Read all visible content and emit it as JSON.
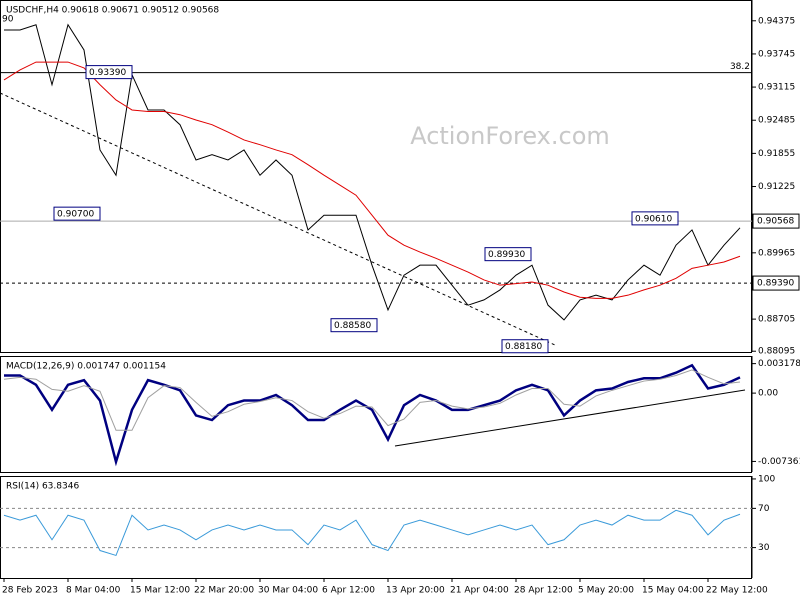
{
  "chart_data": [
    {
      "type": "line",
      "title": "USDCHF,H4  0.90618 0.90671 0.90512 0.90568",
      "watermark": "ActionForex.com",
      "cut_label": "90",
      "ylim": [
        0.8808,
        0.9477
      ],
      "yticks": [
        0.94375,
        0.93745,
        0.93115,
        0.92485,
        0.91855,
        0.91225,
        0.89965,
        0.88705,
        0.88095
      ],
      "price_line": 0.90568,
      "level_line": {
        "value": 0.8939,
        "label": "0.89390"
      },
      "fib_line": {
        "value": 0.9339,
        "label": "38.2"
      },
      "annotations": [
        {
          "value": 0.9339,
          "label": "0.93390"
        },
        {
          "value": 0.907,
          "label": "0.90700"
        },
        {
          "value": 0.8858,
          "label": "0.88580"
        },
        {
          "value": 0.8993,
          "label": "0.89930"
        },
        {
          "value": 0.8818,
          "label": "0.88180"
        },
        {
          "value": 0.9061,
          "label": "0.90610"
        }
      ],
      "series": [
        {
          "color": "#000000",
          "values": [
            0.942,
            0.942,
            0.943,
            0.9316,
            0.943,
            0.9382,
            0.9192,
            0.9144,
            0.9335,
            0.9268,
            0.9268,
            0.924,
            0.9173,
            0.9183,
            0.9173,
            0.9192,
            0.9144,
            0.9173,
            0.9144,
            0.904,
            0.9068,
            0.9068,
            0.9068,
            0.8973,
            0.8888,
            0.8954,
            0.8973,
            0.8973,
            0.8935,
            0.8897,
            0.8907,
            0.8926,
            0.8954,
            0.8973,
            0.8897,
            0.8869,
            0.8907,
            0.8916,
            0.8907,
            0.8945,
            0.8973,
            0.8954,
            0.9011,
            0.904,
            0.8973,
            0.9011,
            0.9044
          ]
        },
        {
          "color": "#e00000",
          "values": [
            0.9325,
            0.9344,
            0.9359,
            0.9359,
            0.9359,
            0.9348,
            0.9316,
            0.9287,
            0.9268,
            0.9265,
            0.9265,
            0.9259,
            0.9249,
            0.924,
            0.9226,
            0.9211,
            0.9202,
            0.9192,
            0.9183,
            0.9164,
            0.9144,
            0.9125,
            0.9106,
            0.9068,
            0.903,
            0.9011,
            0.8998,
            0.8986,
            0.8973,
            0.896,
            0.8945,
            0.8935,
            0.8938,
            0.8941,
            0.8935,
            0.8922,
            0.8912,
            0.891,
            0.891,
            0.8916,
            0.8926,
            0.8935,
            0.8948,
            0.8967,
            0.8973,
            0.8979,
            0.899
          ]
        }
      ]
    },
    {
      "type": "line",
      "title": "MACD(12,26,9) 0.001747 0.001154",
      "ylim": [
        -0.0085,
        0.004
      ],
      "yticks": [
        0.003178,
        {
          "value": 0,
          "label": "0.00"
        },
        -0.007361
      ],
      "series": [
        {
          "color": "#000080",
          "values": [
            0.0019,
            0.0019,
            0.0009,
            -0.0018,
            0.0009,
            0.0014,
            -0.0008,
            -0.0074,
            -0.0018,
            0.0014,
            0.0009,
            0.0003,
            -0.0024,
            -0.0029,
            -0.0013,
            -0.0008,
            -0.0008,
            -0.0002,
            -0.0013,
            -0.0029,
            -0.0029,
            -0.0018,
            -0.0008,
            -0.0018,
            -0.005,
            -0.0013,
            -0.0002,
            -0.0008,
            -0.0018,
            -0.0018,
            -0.0013,
            -0.0008,
            0.0003,
            0.0009,
            0.0003,
            -0.0024,
            -0.0008,
            0.0003,
            0.0005,
            0.0012,
            0.0016,
            0.0016,
            0.0022,
            0.003,
            0.0005,
            0.0009,
            0.0017
          ]
        },
        {
          "color": "#a0a0a0",
          "values": [
            0.0015,
            0.0017,
            0.0015,
            0.0004,
            0.0002,
            0.0008,
            0.0002,
            -0.004,
            -0.004,
            -0.0005,
            0.0008,
            0.0006,
            -0.001,
            -0.0025,
            -0.002,
            -0.0012,
            -0.0009,
            -0.0005,
            -0.0008,
            -0.002,
            -0.0027,
            -0.0022,
            -0.0014,
            -0.0015,
            -0.0035,
            -0.0028,
            -0.001,
            -0.0008,
            -0.0014,
            -0.0017,
            -0.0015,
            -0.0011,
            -0.0002,
            0.0005,
            0.0005,
            -0.0012,
            -0.0014,
            -0.0003,
            0.0003,
            0.0008,
            0.0013,
            0.0015,
            0.0019,
            0.0025,
            0.0017,
            0.001,
            0.0012
          ]
        }
      ]
    },
    {
      "type": "line",
      "title": "RSI(14) 63.8346",
      "ylim": [
        -1,
        103
      ],
      "yticks": [
        100,
        70,
        30
      ],
      "levels": [
        70,
        30
      ],
      "categories": [
        "28 Feb 2023",
        null,
        null,
        null,
        "8 Mar 04:00",
        null,
        null,
        null,
        "15 Mar 12:00",
        null,
        null,
        null,
        "22 Mar 20:00",
        null,
        null,
        null,
        "30 Mar 04:00",
        null,
        null,
        null,
        "6 Apr 12:00",
        null,
        null,
        null,
        "13 Apr 20:00",
        null,
        null,
        null,
        "21 Apr 04:00",
        null,
        null,
        null,
        "28 Apr 12:00",
        null,
        null,
        null,
        "5 May 20:00",
        null,
        null,
        null,
        "15 May 04:00",
        null,
        null,
        null,
        "22 May 12:00",
        null,
        null
      ],
      "series": [
        {
          "color": "#3a9ad9",
          "values": [
            63,
            58,
            63,
            38,
            63,
            58,
            27,
            22,
            63,
            48,
            53,
            48,
            38,
            48,
            53,
            48,
            53,
            48,
            48,
            33,
            53,
            48,
            58,
            33,
            27,
            53,
            58,
            53,
            48,
            43,
            48,
            53,
            48,
            53,
            33,
            38,
            53,
            58,
            53,
            63,
            58,
            58,
            68,
            63,
            43,
            58,
            64
          ]
        }
      ]
    }
  ]
}
